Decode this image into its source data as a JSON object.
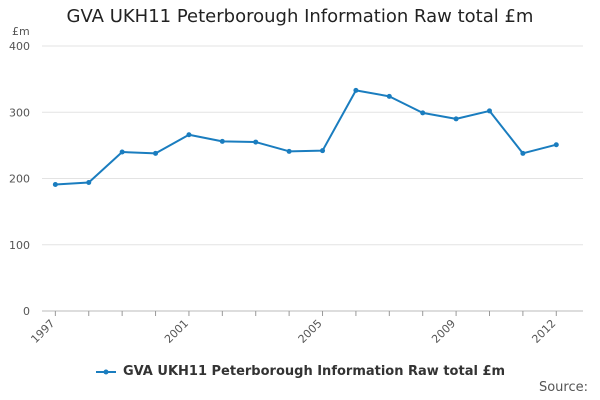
{
  "chart_data": {
    "type": "line",
    "title": "GVA UKH11 Peterborough Information Raw total £m",
    "ylabel": "£m",
    "xlabel": "",
    "ylim": [
      0,
      400
    ],
    "yticks": [
      0,
      100,
      200,
      300,
      400
    ],
    "x_tick_labels": [
      "1997",
      "2001",
      "2005",
      "2009",
      "2012"
    ],
    "x": [
      1997,
      1998,
      1999,
      2000,
      2001,
      2002,
      2003,
      2004,
      2005,
      2006,
      2007,
      2008,
      2009,
      2010,
      2011,
      2012
    ],
    "series": [
      {
        "name": "GVA UKH11 Peterborough Information Raw total £m",
        "color": "#1a7dbf",
        "values": [
          191,
          194,
          240,
          238,
          266,
          256,
          255,
          241,
          242,
          333,
          324,
          299,
          290,
          302,
          238,
          251
        ]
      }
    ],
    "grid": true,
    "legend_position": "bottom"
  },
  "source_label": "Source:"
}
